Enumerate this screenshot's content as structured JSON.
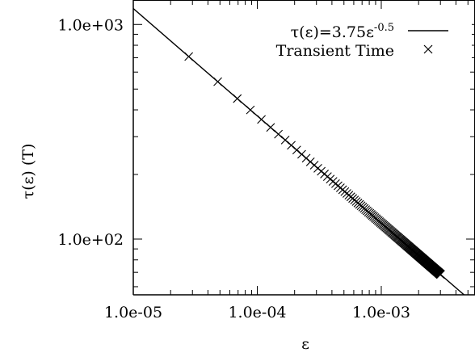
{
  "chart_data": {
    "type": "scatter",
    "title": "",
    "xlabel": "ε",
    "ylabel": "τ(ε) (T)",
    "x_scale": "log",
    "y_scale": "log",
    "xlim": [
      1e-05,
      0.0057
    ],
    "ylim": [
      55,
      1300
    ],
    "x_ticks": [
      {
        "value": 1e-05,
        "label": "1.0e-05"
      },
      {
        "value": 0.0001,
        "label": "1.0e-04"
      },
      {
        "value": 0.001,
        "label": "1.0e-03"
      }
    ],
    "y_ticks": [
      {
        "value": 100,
        "label": "1.0e+02"
      },
      {
        "value": 1000,
        "label": "1.0e+03"
      }
    ],
    "grid": false,
    "legend": {
      "placement": "top-right",
      "entries": [
        {
          "label_base": "τ(ε)=3.75ε",
          "label_exp": "-0.5",
          "marker": "line"
        },
        {
          "label": "Transient Time",
          "marker": "x"
        }
      ]
    },
    "series": [
      {
        "name": "τ(ε)=3.75ε^-0.5",
        "kind": "line",
        "coefficient": 3.75,
        "exponent": -0.5
      },
      {
        "name": "Transient Time",
        "kind": "scatter",
        "marker": "x",
        "x": [
          2.8e-05,
          4.8e-05,
          6.9e-05,
          8.8e-05,
          0.000108,
          0.000128,
          0.000148,
          0.000168,
          0.000188,
          0.000208,
          0.000228,
          0.000248,
          0.000268,
          0.000288,
          0.000308,
          0.000328,
          0.000348,
          0.000368,
          0.000388,
          0.000408,
          0.000428,
          0.000448,
          0.000468,
          0.000488,
          0.000508,
          0.000528,
          0.000548,
          0.000568,
          0.000588,
          0.000608,
          0.000628,
          0.000648,
          0.000668,
          0.000688,
          0.000708,
          0.000728,
          0.000748,
          0.000768,
          0.000788,
          0.000808,
          0.000828,
          0.000848,
          0.000868,
          0.000888,
          0.000908,
          0.000928,
          0.000948,
          0.000968,
          0.000988,
          0.001008,
          0.001028,
          0.001048,
          0.001068,
          0.001088,
          0.001108,
          0.001128,
          0.001148,
          0.001168,
          0.001188,
          0.001208,
          0.001228,
          0.001248,
          0.001268,
          0.001288,
          0.001308,
          0.001328,
          0.001348,
          0.001368,
          0.001388,
          0.001408,
          0.001428,
          0.001448,
          0.001468,
          0.001488,
          0.001508,
          0.001528,
          0.001548,
          0.001568,
          0.001588,
          0.001608,
          0.001628,
          0.001648,
          0.001668,
          0.001688,
          0.001708,
          0.001728,
          0.001748,
          0.001768,
          0.001788,
          0.001808,
          0.001828,
          0.001848,
          0.001868,
          0.001888,
          0.001908,
          0.001928,
          0.001948,
          0.001968,
          0.001988,
          0.002008,
          0.002028,
          0.002048,
          0.002068,
          0.002088,
          0.002108,
          0.002128,
          0.002148,
          0.002168,
          0.002188,
          0.002208,
          0.002228,
          0.002248,
          0.002268,
          0.002288,
          0.002308,
          0.002328,
          0.002348,
          0.002368,
          0.002388,
          0.002408,
          0.002428,
          0.002448,
          0.002468,
          0.002488,
          0.002508,
          0.002528,
          0.002548,
          0.002568,
          0.002588,
          0.002608,
          0.002628,
          0.002648,
          0.002668,
          0.002688,
          0.002708,
          0.002728,
          0.002748,
          0.002768,
          0.002788,
          0.002808,
          0.002828,
          0.002848,
          0.002868,
          0.002888,
          0.002908,
          0.002928,
          0.002948,
          0.002968,
          0.002988,
          0.003008
        ]
      }
    ]
  }
}
